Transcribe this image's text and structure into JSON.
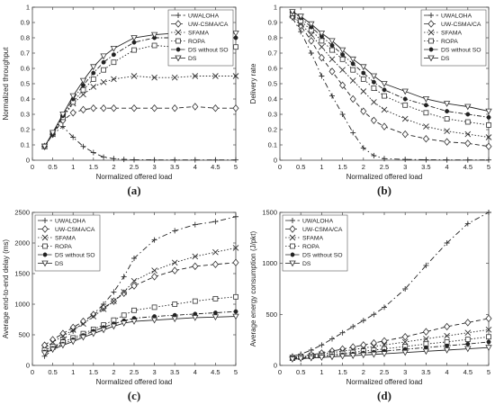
{
  "chart_data": [
    {
      "type": "line",
      "panel_label": "(a)",
      "xlabel": "Normalized offered load",
      "ylabel": "Normalized throughput",
      "xlim": [
        0,
        5
      ],
      "ylim": [
        0,
        1
      ],
      "xticks": [
        "0",
        "0.5",
        "1",
        "1.5",
        "2",
        "2.5",
        "3",
        "3.5",
        "4",
        "4.5",
        "5"
      ],
      "yticks": [
        "0",
        "0.1",
        "0.2",
        "0.3",
        "0.4",
        "0.5",
        "0.6",
        "0.7",
        "0.8",
        "0.9",
        "1"
      ],
      "legend_position": "top-right",
      "grid": false,
      "series": [
        {
          "name": "UWALOHA",
          "x": [
            0.3,
            0.5,
            0.75,
            1.0,
            1.25,
            1.5,
            1.75,
            2.0,
            2.25,
            2.5,
            3.0,
            3.5,
            4.0,
            4.5,
            5.0
          ],
          "y": [
            0.09,
            0.17,
            0.22,
            0.15,
            0.09,
            0.05,
            0.02,
            0.01,
            0.005,
            0.003,
            0.002,
            0.002,
            0.002,
            0.002,
            0.002
          ]
        },
        {
          "name": "UW-CSMA/CA",
          "x": [
            0.3,
            0.5,
            0.75,
            1.0,
            1.25,
            1.5,
            1.75,
            2.0,
            2.5,
            3.0,
            3.5,
            4.0,
            4.5,
            5.0
          ],
          "y": [
            0.09,
            0.17,
            0.26,
            0.31,
            0.33,
            0.34,
            0.34,
            0.34,
            0.34,
            0.34,
            0.34,
            0.35,
            0.34,
            0.34
          ]
        },
        {
          "name": "SFAMA",
          "x": [
            0.3,
            0.5,
            0.75,
            1.0,
            1.25,
            1.5,
            1.75,
            2.0,
            2.5,
            3.0,
            3.5,
            4.0,
            4.5,
            5.0
          ],
          "y": [
            0.09,
            0.17,
            0.28,
            0.37,
            0.43,
            0.48,
            0.51,
            0.53,
            0.55,
            0.54,
            0.54,
            0.55,
            0.55,
            0.55
          ]
        },
        {
          "name": "ROPA",
          "x": [
            0.3,
            0.5,
            0.75,
            1.0,
            1.25,
            1.5,
            1.75,
            2.0,
            2.5,
            3.0,
            3.5,
            4.0,
            4.5,
            5.0
          ],
          "y": [
            0.09,
            0.17,
            0.28,
            0.38,
            0.46,
            0.53,
            0.59,
            0.64,
            0.72,
            0.75,
            0.74,
            0.75,
            0.74,
            0.74
          ]
        },
        {
          "name": "DS without SO",
          "x": [
            0.3,
            0.5,
            0.75,
            1.0,
            1.25,
            1.5,
            1.75,
            2.0,
            2.5,
            3.0,
            3.5,
            4.0,
            4.5,
            5.0
          ],
          "y": [
            0.09,
            0.17,
            0.29,
            0.4,
            0.49,
            0.57,
            0.64,
            0.69,
            0.77,
            0.8,
            0.8,
            0.81,
            0.8,
            0.8
          ]
        },
        {
          "name": "DS",
          "x": [
            0.3,
            0.5,
            0.75,
            1.0,
            1.25,
            1.5,
            1.75,
            2.0,
            2.5,
            3.0,
            3.5,
            4.0,
            4.5,
            5.0
          ],
          "y": [
            0.09,
            0.18,
            0.3,
            0.42,
            0.52,
            0.61,
            0.68,
            0.73,
            0.8,
            0.82,
            0.83,
            0.83,
            0.83,
            0.83
          ]
        }
      ]
    },
    {
      "type": "line",
      "panel_label": "(b)",
      "xlabel": "Normalized offered load",
      "ylabel": "Delivery rate",
      "xlim": [
        0,
        5
      ],
      "ylim": [
        0,
        1
      ],
      "xticks": [
        "0",
        "0.5",
        "1",
        "1.5",
        "2",
        "2.5",
        "3",
        "3.5",
        "4",
        "4.5",
        "5"
      ],
      "yticks": [
        "0",
        "0.1",
        "0.2",
        "0.3",
        "0.4",
        "0.5",
        "0.6",
        "0.7",
        "0.8",
        "0.9",
        "1"
      ],
      "legend_position": "top-right",
      "grid": false,
      "series": [
        {
          "name": "UWALOHA",
          "x": [
            0.3,
            0.5,
            0.75,
            1.0,
            1.25,
            1.5,
            1.75,
            2.0,
            2.25,
            2.5,
            3.0,
            3.5,
            4.0,
            4.5,
            5.0
          ],
          "y": [
            0.93,
            0.84,
            0.7,
            0.55,
            0.42,
            0.3,
            0.18,
            0.08,
            0.03,
            0.01,
            0.005,
            0.003,
            0.002,
            0.002,
            0.002
          ]
        },
        {
          "name": "UW-CSMA/CA",
          "x": [
            0.3,
            0.5,
            0.75,
            1.0,
            1.25,
            1.5,
            1.75,
            2.0,
            2.25,
            2.5,
            3.0,
            3.5,
            4.0,
            4.5,
            5.0
          ],
          "y": [
            0.94,
            0.88,
            0.78,
            0.67,
            0.58,
            0.49,
            0.4,
            0.32,
            0.26,
            0.22,
            0.17,
            0.14,
            0.12,
            0.11,
            0.09
          ]
        },
        {
          "name": "SFAMA",
          "x": [
            0.3,
            0.5,
            0.75,
            1.0,
            1.25,
            1.5,
            1.75,
            2.0,
            2.25,
            2.5,
            3.0,
            3.5,
            4.0,
            4.5,
            5.0
          ],
          "y": [
            0.95,
            0.89,
            0.82,
            0.74,
            0.66,
            0.59,
            0.52,
            0.45,
            0.38,
            0.33,
            0.27,
            0.22,
            0.19,
            0.17,
            0.15
          ]
        },
        {
          "name": "ROPA",
          "x": [
            0.3,
            0.5,
            0.75,
            1.0,
            1.25,
            1.5,
            1.75,
            2.0,
            2.25,
            2.5,
            3.0,
            3.5,
            4.0,
            4.5,
            5.0
          ],
          "y": [
            0.96,
            0.91,
            0.85,
            0.78,
            0.72,
            0.66,
            0.59,
            0.53,
            0.47,
            0.42,
            0.36,
            0.31,
            0.27,
            0.25,
            0.23
          ]
        },
        {
          "name": "DS without SO",
          "x": [
            0.3,
            0.5,
            0.75,
            1.0,
            1.25,
            1.5,
            1.75,
            2.0,
            2.25,
            2.5,
            3.0,
            3.5,
            4.0,
            4.5,
            5.0
          ],
          "y": [
            0.97,
            0.93,
            0.87,
            0.81,
            0.75,
            0.69,
            0.63,
            0.57,
            0.51,
            0.46,
            0.4,
            0.36,
            0.32,
            0.3,
            0.28
          ]
        },
        {
          "name": "DS",
          "x": [
            0.3,
            0.5,
            0.75,
            1.0,
            1.25,
            1.5,
            1.75,
            2.0,
            2.25,
            2.5,
            3.0,
            3.5,
            4.0,
            4.5,
            5.0
          ],
          "y": [
            0.97,
            0.94,
            0.89,
            0.83,
            0.78,
            0.72,
            0.66,
            0.61,
            0.55,
            0.5,
            0.45,
            0.4,
            0.37,
            0.35,
            0.32
          ]
        }
      ]
    },
    {
      "type": "line",
      "panel_label": "(c)",
      "xlabel": "Normalized offered load",
      "ylabel": "Average end-to-end delay (ms)",
      "xlim": [
        0,
        5
      ],
      "ylim": [
        0,
        2500
      ],
      "xticks": [
        "0",
        "0.5",
        "1",
        "1.5",
        "2",
        "2.5",
        "3",
        "3.5",
        "4",
        "4.5",
        "5"
      ],
      "yticks": [
        "0",
        "500",
        "1000",
        "1500",
        "2000",
        "2500"
      ],
      "legend_position": "top-left",
      "grid": false,
      "series": [
        {
          "name": "UWALOHA",
          "x": [
            0.3,
            0.5,
            0.75,
            1.0,
            1.25,
            1.5,
            1.75,
            2.0,
            2.25,
            2.5,
            3.0,
            3.5,
            4.0,
            4.5,
            5.0
          ],
          "y": [
            150,
            260,
            420,
            560,
            700,
            840,
            1000,
            1200,
            1450,
            1750,
            2050,
            2200,
            2300,
            2350,
            2430
          ]
        },
        {
          "name": "UW-CSMA/CA",
          "x": [
            0.3,
            0.5,
            0.75,
            1.0,
            1.25,
            1.5,
            1.75,
            2.0,
            2.25,
            2.5,
            3.0,
            3.5,
            4.0,
            4.5,
            5.0
          ],
          "y": [
            330,
            420,
            520,
            620,
            720,
            830,
            940,
            1050,
            1180,
            1300,
            1450,
            1550,
            1620,
            1650,
            1680
          ]
        },
        {
          "name": "SFAMA",
          "x": [
            0.3,
            0.5,
            0.75,
            1.0,
            1.25,
            1.5,
            1.75,
            2.0,
            2.25,
            2.5,
            3.0,
            3.5,
            4.0,
            4.5,
            5.0
          ],
          "y": [
            280,
            380,
            480,
            580,
            680,
            800,
            920,
            1050,
            1200,
            1380,
            1550,
            1680,
            1780,
            1850,
            1920
          ]
        },
        {
          "name": "ROPA",
          "x": [
            0.3,
            0.5,
            0.75,
            1.0,
            1.25,
            1.5,
            1.75,
            2.0,
            2.25,
            2.5,
            3.0,
            3.5,
            4.0,
            4.5,
            5.0
          ],
          "y": [
            250,
            310,
            380,
            450,
            520,
            590,
            660,
            740,
            820,
            900,
            950,
            1000,
            1050,
            1090,
            1120
          ]
        },
        {
          "name": "DS without SO",
          "x": [
            0.3,
            0.5,
            0.75,
            1.0,
            1.25,
            1.5,
            1.75,
            2.0,
            2.25,
            2.5,
            3.0,
            3.5,
            4.0,
            4.5,
            5.0
          ],
          "y": [
            220,
            280,
            350,
            420,
            490,
            560,
            620,
            680,
            730,
            770,
            800,
            820,
            840,
            860,
            880
          ]
        },
        {
          "name": "DS",
          "x": [
            0.3,
            0.5,
            0.75,
            1.0,
            1.25,
            1.5,
            1.75,
            2.0,
            2.25,
            2.5,
            3.0,
            3.5,
            4.0,
            4.5,
            5.0
          ],
          "y": [
            200,
            260,
            330,
            390,
            460,
            520,
            580,
            640,
            690,
            720,
            740,
            760,
            780,
            790,
            800
          ]
        }
      ]
    },
    {
      "type": "line",
      "panel_label": "(d)",
      "xlabel": "Normalized offered load",
      "ylabel": "Average energy consumption (J/pkt)",
      "xlim": [
        0,
        5
      ],
      "ylim": [
        0,
        1500
      ],
      "xticks": [
        "0",
        "0.5",
        "1",
        "1.5",
        "2",
        "2.5",
        "3",
        "3.5",
        "4",
        "4.5",
        "5"
      ],
      "yticks": [
        "0",
        "500",
        "1000",
        "1500"
      ],
      "legend_position": "top-left",
      "grid": false,
      "series": [
        {
          "name": "UWALOHA",
          "x": [
            0.3,
            0.5,
            0.75,
            1.0,
            1.25,
            1.5,
            1.75,
            2.0,
            2.25,
            2.5,
            3.0,
            3.5,
            4.0,
            4.5,
            5.0
          ],
          "y": [
            90,
            110,
            150,
            200,
            260,
            320,
            380,
            440,
            500,
            570,
            750,
            980,
            1200,
            1390,
            1500
          ]
        },
        {
          "name": "UW-CSMA/CA",
          "x": [
            0.3,
            0.5,
            0.75,
            1.0,
            1.25,
            1.5,
            1.75,
            2.0,
            2.25,
            2.5,
            3.0,
            3.5,
            4.0,
            4.5,
            5.0
          ],
          "y": [
            80,
            90,
            105,
            120,
            140,
            160,
            180,
            200,
            220,
            240,
            280,
            330,
            380,
            420,
            460
          ]
        },
        {
          "name": "SFAMA",
          "x": [
            0.3,
            0.5,
            0.75,
            1.0,
            1.25,
            1.5,
            1.75,
            2.0,
            2.25,
            2.5,
            3.0,
            3.5,
            4.0,
            4.5,
            5.0
          ],
          "y": [
            75,
            85,
            95,
            110,
            125,
            140,
            155,
            170,
            185,
            200,
            230,
            260,
            290,
            320,
            350
          ]
        },
        {
          "name": "ROPA",
          "x": [
            0.3,
            0.5,
            0.75,
            1.0,
            1.25,
            1.5,
            1.75,
            2.0,
            2.25,
            2.5,
            3.0,
            3.5,
            4.0,
            4.5,
            5.0
          ],
          "y": [
            70,
            80,
            88,
            98,
            108,
            118,
            128,
            140,
            150,
            162,
            185,
            210,
            230,
            255,
            280
          ]
        },
        {
          "name": "DS without SO",
          "x": [
            0.3,
            0.5,
            0.75,
            1.0,
            1.25,
            1.5,
            1.75,
            2.0,
            2.25,
            2.5,
            3.0,
            3.5,
            4.0,
            4.5,
            5.0
          ],
          "y": [
            65,
            72,
            80,
            88,
            96,
            104,
            112,
            122,
            130,
            140,
            158,
            175,
            192,
            210,
            230
          ]
        },
        {
          "name": "DS",
          "x": [
            0.3,
            0.5,
            0.75,
            1.0,
            1.25,
            1.5,
            1.75,
            2.0,
            2.25,
            2.5,
            3.0,
            3.5,
            4.0,
            4.5,
            5.0
          ],
          "y": [
            60,
            66,
            72,
            78,
            84,
            90,
            96,
            102,
            108,
            114,
            126,
            138,
            150,
            163,
            175
          ]
        }
      ]
    }
  ]
}
